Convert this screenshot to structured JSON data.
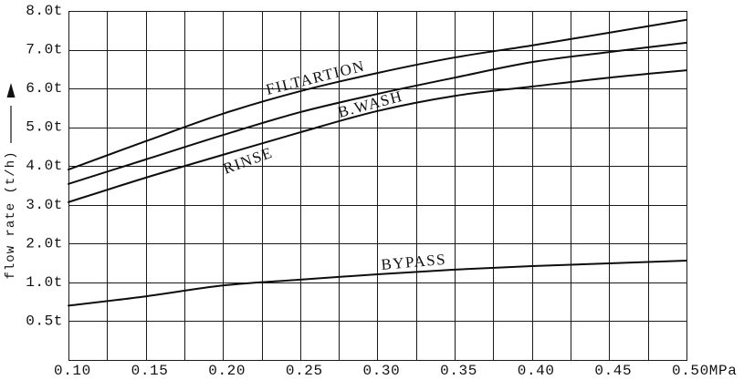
{
  "chart_data": {
    "type": "line",
    "ylabel": "flow rate (t/h)",
    "x": [
      0.1,
      0.15,
      0.2,
      0.25,
      0.3,
      0.35,
      0.4,
      0.45,
      0.5
    ],
    "xlim": [
      0.1,
      0.5
    ],
    "xticks": [
      {
        "value": 0.1,
        "label": "0.10"
      },
      {
        "value": 0.15,
        "label": "0.15"
      },
      {
        "value": 0.2,
        "label": "0.20"
      },
      {
        "value": 0.25,
        "label": "0.25"
      },
      {
        "value": 0.3,
        "label": "0.30"
      },
      {
        "value": 0.35,
        "label": "0.35"
      },
      {
        "value": 0.4,
        "label": "0.40"
      },
      {
        "value": 0.45,
        "label": "0.45"
      },
      {
        "value": 0.5,
        "label": "0.50MPa"
      }
    ],
    "yticks": [
      {
        "value": 8.0,
        "label": "8.0t"
      },
      {
        "value": 7.0,
        "label": "7.0t"
      },
      {
        "value": 6.0,
        "label": "6.0t"
      },
      {
        "value": 5.0,
        "label": "5.0t"
      },
      {
        "value": 4.0,
        "label": "4.0t"
      },
      {
        "value": 3.0,
        "label": "3.0t"
      },
      {
        "value": 2.0,
        "label": "2.0t"
      },
      {
        "value": 1.0,
        "label": "1.0t"
      },
      {
        "value": 0.5,
        "label": "0.5t"
      }
    ],
    "grid": true,
    "series": [
      {
        "name": "FILTARTION",
        "values": [
          3.91,
          4.64,
          5.35,
          5.93,
          6.4,
          6.8,
          7.11,
          7.44,
          7.77
        ]
      },
      {
        "name": "B.WASH",
        "values": [
          3.54,
          4.17,
          4.8,
          5.39,
          5.86,
          6.28,
          6.68,
          6.94,
          7.18
        ]
      },
      {
        "name": "RINSE",
        "values": [
          3.07,
          3.7,
          4.29,
          4.87,
          5.42,
          5.81,
          6.05,
          6.28,
          6.47
        ]
      },
      {
        "name": "BYPASS",
        "values": [
          0.7,
          0.82,
          0.96,
          1.07,
          1.21,
          1.33,
          1.42,
          1.49,
          1.56
        ]
      }
    ],
    "colors": {
      "line": "#0d0d0d",
      "grid": "#1a1a1a",
      "background": "#ffffff"
    }
  }
}
